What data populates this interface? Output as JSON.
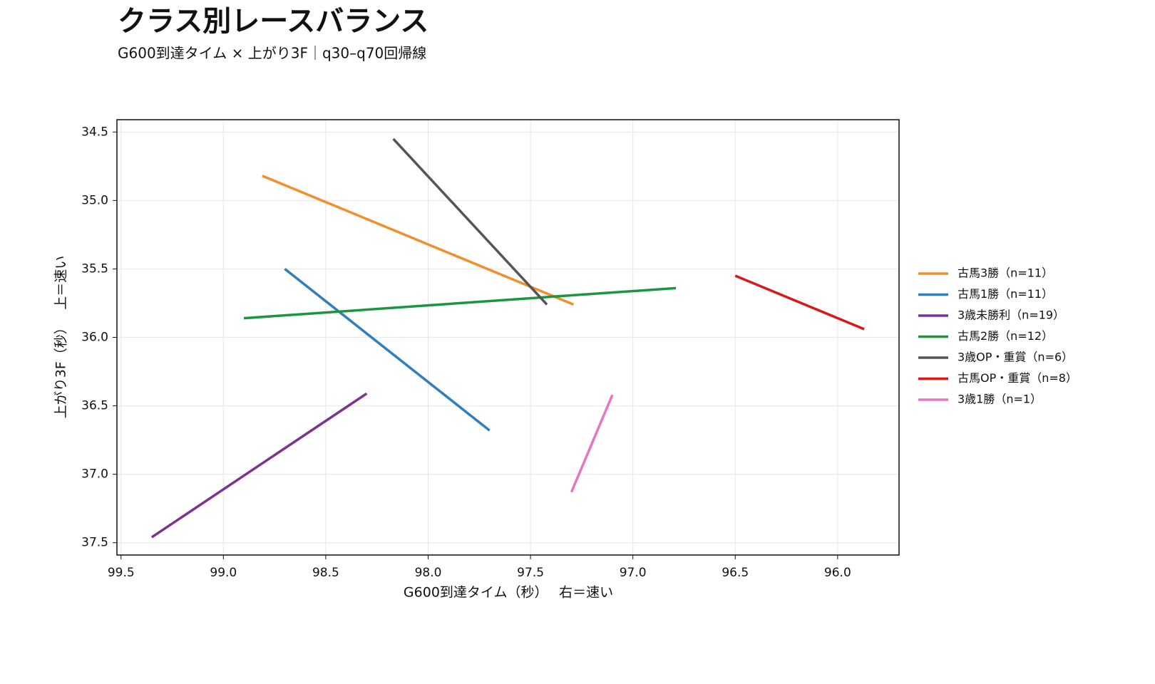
{
  "chart_data": {
    "type": "line",
    "title": "クラス別レースバランス",
    "subtitle": "G600到達タイム × 上がり3F｜q30–q70回帰線",
    "x_label": "G600到達タイム（秒）　 右＝速い",
    "y_label": "上がり3F（秒）　 上＝速い",
    "xlim": [
      99.52,
      95.7
    ],
    "ylim": [
      37.59,
      34.41
    ],
    "xticks": [
      99.5,
      {
        "value": 99,
        "label": "99.0"
      },
      98.5,
      {
        "value": 98,
        "label": "98.0"
      },
      97.5,
      {
        "value": 97,
        "label": "97.0"
      },
      96.5,
      {
        "value": 96,
        "label": "96.0"
      }
    ],
    "yticks": [
      34.5,
      {
        "value": 35,
        "label": "35.0"
      },
      35.5,
      {
        "value": 36,
        "label": "36.0"
      },
      36.5,
      {
        "value": 37,
        "label": "37.0"
      },
      37.5
    ],
    "grid": true,
    "legend": "right",
    "series": [
      {
        "name": "古馬3勝（n=11）",
        "color": "#f28e2b",
        "x": [
          98.81,
          97.29
        ],
        "values": [
          34.82,
          35.76
        ]
      },
      {
        "name": "古馬1勝（n=11）",
        "color": "#2f7fbf",
        "x": [
          98.7,
          97.7
        ],
        "values": [
          35.5,
          36.68
        ]
      },
      {
        "name": "3歳未勝利（n=19）",
        "color": "#7b3294",
        "x": [
          99.35,
          98.3
        ],
        "values": [
          37.46,
          36.41
        ]
      },
      {
        "name": "古馬2勝（n=12）",
        "color": "#1a9641",
        "x": [
          98.9,
          96.79
        ],
        "values": [
          35.86,
          35.64
        ]
      },
      {
        "name": "3歳OP・重賞（n=6）",
        "color": "#555555",
        "x": [
          98.17,
          97.42
        ],
        "values": [
          34.55,
          35.76
        ]
      },
      {
        "name": "古馬OP・重賞（n=8）",
        "color": "#d7191c",
        "x": [
          96.5,
          95.87
        ],
        "values": [
          35.55,
          35.94
        ]
      },
      {
        "name": "3歳1勝（n=1）",
        "color": "#e377c2",
        "x": [
          97.1,
          97.3
        ],
        "values": [
          36.42,
          37.13
        ]
      }
    ]
  }
}
